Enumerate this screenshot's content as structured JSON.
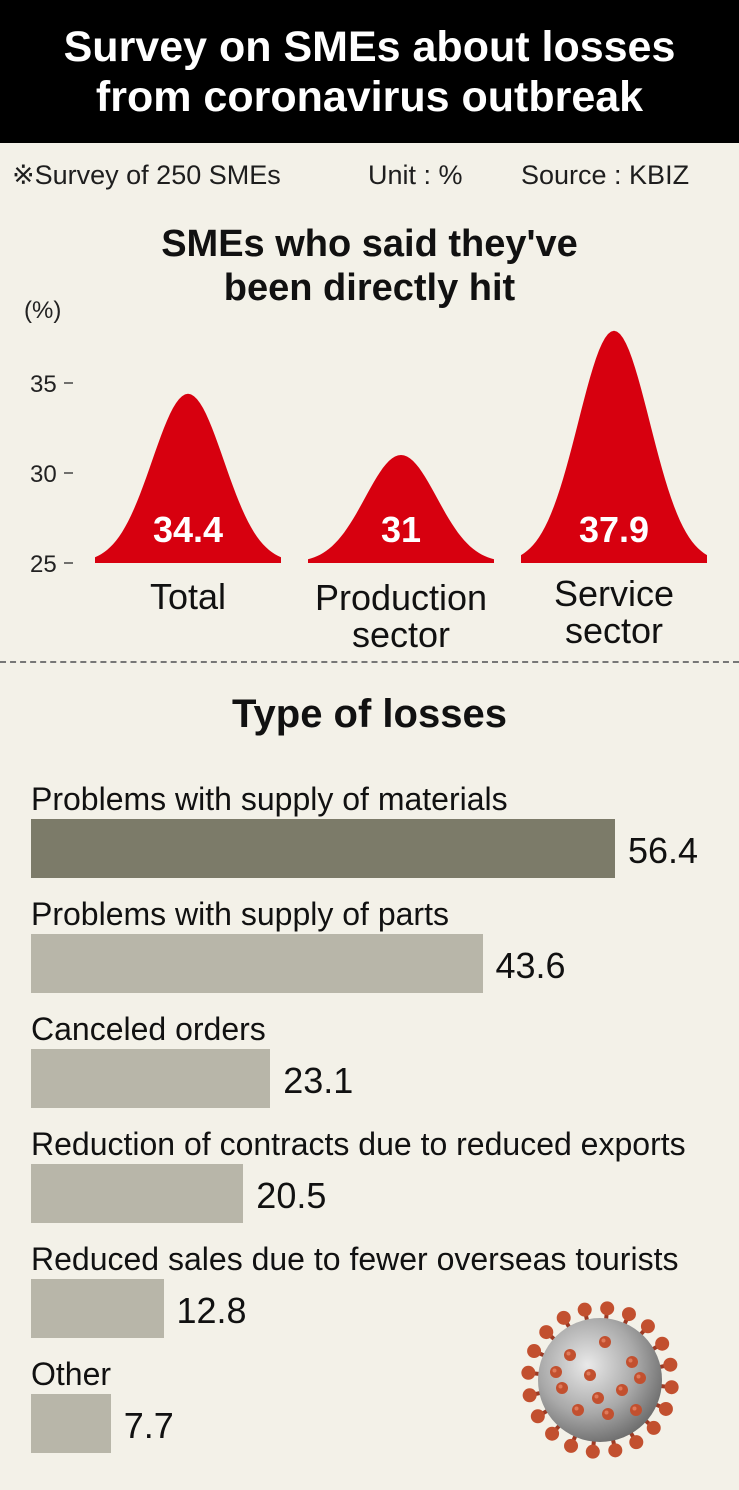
{
  "header": {
    "title_line1": "Survey on SMEs about losses",
    "title_line2": "from coronavirus outbreak"
  },
  "meta": {
    "survey": "※Survey of 250 SMEs",
    "unit": "Unit : %",
    "source": "Source : KBIZ"
  },
  "chart_data": [
    {
      "type": "area",
      "title_line1": "SMEs who said they've",
      "title_line2": "been directly hit",
      "ylabel": "(%)",
      "ylim": [
        25,
        38
      ],
      "yticks": [
        "35",
        "30",
        "25"
      ],
      "ytick_values": [
        35,
        30,
        25
      ],
      "categories": [
        {
          "line1": "Total",
          "line2": ""
        },
        {
          "line1": "Production",
          "line2": "sector"
        },
        {
          "line1": "Service",
          "line2": "sector"
        }
      ],
      "values": [
        34.4,
        31,
        37.9
      ],
      "value_labels": [
        "34.4",
        "31",
        "37.9"
      ],
      "color": "#d7000f"
    },
    {
      "type": "bar",
      "orientation": "horizontal",
      "title": "Type of losses",
      "categories": [
        "Problems with supply of materials",
        "Problems with supply of parts",
        "Canceled orders",
        "Reduction of contracts due to reduced exports",
        "Reduced sales due to fewer overseas tourists",
        "Other"
      ],
      "values": [
        56.4,
        43.6,
        23.1,
        20.5,
        12.8,
        7.7
      ],
      "value_labels": [
        "56.4",
        "43.6",
        "23.1",
        "20.5",
        "12.8",
        "7.7"
      ],
      "colors": {
        "highlight": "#7c7b69",
        "default": "#b8b6a9"
      }
    }
  ]
}
